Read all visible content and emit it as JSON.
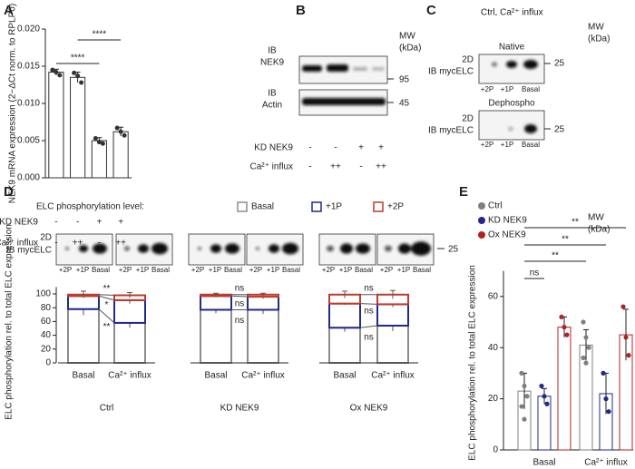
{
  "chart_data": [
    {
      "type": "bar",
      "label": "A",
      "ylabel": "NEK9 mRNA expression (2−ΔCt norm. to RPLP0)",
      "values": [
        0.0142,
        0.0135,
        0.005,
        0.0062
      ],
      "errors": [
        0.0004,
        0.0007,
        0.0004,
        0.0006
      ],
      "points": [
        [
          0.0145,
          0.0142,
          0.0138
        ],
        [
          0.0141,
          0.0137,
          0.0128
        ],
        [
          0.0053,
          0.0048,
          0.0046
        ],
        [
          0.0067,
          0.0062,
          0.0057
        ]
      ],
      "color": "#ffffff",
      "edge_color": "#333333",
      "ylim": [
        0,
        0.02
      ],
      "yticks": [
        {
          "value": 0,
          "label": "0.000"
        },
        {
          "value": 0.005,
          "label": "0.005"
        },
        {
          "value": 0.01,
          "label": "0.010"
        },
        {
          "value": 0.015,
          "label": "0.015"
        },
        {
          "value": 0.02,
          "label": "0.020"
        }
      ],
      "rows": [
        {
          "name": "KD NEK9",
          "values": [
            "-",
            "-",
            "+",
            "+"
          ]
        },
        {
          "name": "Ca²⁺ influx",
          "values": [
            "-",
            "++",
            "-",
            "++"
          ]
        }
      ],
      "annotations": [
        "****",
        "****"
      ]
    },
    {
      "type": "stacked_bar",
      "label": "D",
      "legend_title": "ELC phosphorylation level:",
      "ylabel": "ELC phosphorylation rel. to total ELC expression",
      "groups": [
        "Ctrl",
        "KD NEK9",
        "Ox NEK9"
      ],
      "categories": [
        "Basal",
        "Ca²⁺ influx",
        "Basal",
        "Ca²⁺ influx",
        "Basal",
        "Ca²⁺ influx"
      ],
      "series": [
        {
          "name": "Basal",
          "color": "#8c8c8c",
          "values": [
            78,
            58,
            77,
            77,
            51,
            54
          ],
          "errors": [
            9,
            7,
            5,
            6,
            6,
            8
          ]
        },
        {
          "name": "+1P",
          "color": "#1f2a8c",
          "values": [
            19,
            33,
            20,
            19,
            35,
            31
          ],
          "errors": [
            2,
            5,
            2,
            3,
            2,
            4
          ]
        },
        {
          "name": "+2P",
          "color": "#c0392b",
          "values": [
            2,
            7,
            2,
            3,
            13,
            14
          ],
          "errors": [
            5,
            4,
            2,
            2,
            5,
            6
          ]
        }
      ],
      "ylim": [
        0,
        110
      ],
      "yticks": [
        0,
        20,
        40,
        60,
        80,
        100
      ],
      "annotations": [
        "**",
        "*",
        "**",
        "ns",
        "ns",
        "ns",
        "ns",
        "ns",
        "ns"
      ]
    },
    {
      "type": "grouped_bar",
      "label": "E",
      "ylabel": "ELC phosphorylation rel. to total ELC expression",
      "categories": [
        "Basal",
        "Ca²⁺ influx"
      ],
      "series": [
        {
          "name": "Ctrl",
          "color": "#7f7f7f",
          "values": [
            23,
            41
          ],
          "errors": [
            7,
            6
          ],
          "points": [
            [
              30,
              25,
              21,
              17,
              12
            ],
            [
              50,
              44,
              40,
              36,
              34
            ]
          ]
        },
        {
          "name": "KD NEK9",
          "color": "#1f2a8c",
          "values": [
            21,
            22
          ],
          "errors": [
            3,
            8
          ],
          "points": [
            [
              25,
              21,
              18
            ],
            [
              30,
              20,
              15
            ]
          ]
        },
        {
          "name": "Ox NEK9",
          "color": "#b22222",
          "values": [
            48,
            45
          ],
          "errors": [
            4,
            10
          ],
          "points": [
            [
              52,
              48,
              45
            ],
            [
              56,
              44,
              37
            ]
          ]
        }
      ],
      "ylim": [
        0,
        70
      ],
      "yticks": [
        0,
        20,
        40,
        60
      ],
      "annotations": [
        "ns",
        "**",
        "**",
        "**"
      ]
    }
  ],
  "blots": {
    "B": {
      "label": "B",
      "mw": [
        "MW",
        "(kDa)"
      ],
      "probes": [
        [
          "IB",
          "NEK9"
        ],
        [
          "IB",
          "Actin"
        ]
      ],
      "markers": [
        "95",
        "45"
      ],
      "rows": [
        {
          "name": "KD NEK9",
          "values": [
            "-",
            "-",
            "+",
            "+"
          ]
        },
        {
          "name": "Ca²⁺ influx",
          "values": [
            "-",
            "++",
            "-",
            "++"
          ]
        }
      ]
    },
    "C": {
      "label": "C",
      "title": "Ctrl, Ca²⁺ influx",
      "mw": [
        "MW",
        "(kDa)"
      ],
      "conditions": [
        "Native",
        "Dephospho"
      ],
      "probe": [
        "2D",
        "IB mycELC"
      ],
      "lanes": [
        "+2P",
        "+1P",
        "Basal"
      ],
      "marker": "25"
    },
    "D": {
      "probe": [
        "2D",
        "IB mycELC"
      ],
      "mw": [
        "MW",
        "(kDa)"
      ],
      "lanes": [
        "+2P",
        "+1P",
        "Basal"
      ],
      "marker": "25"
    }
  }
}
